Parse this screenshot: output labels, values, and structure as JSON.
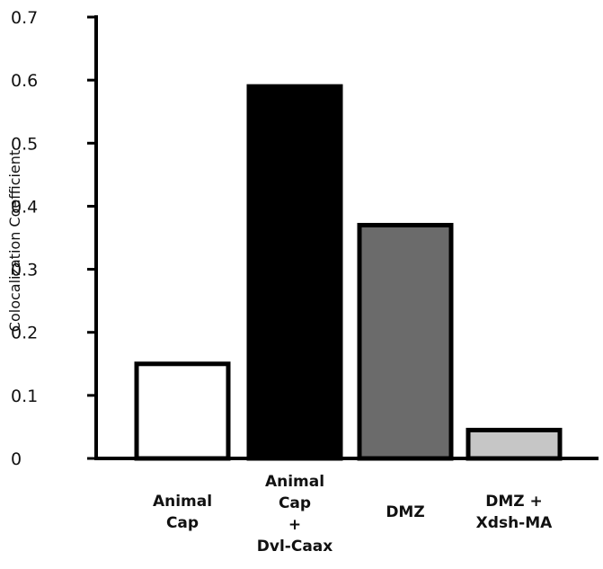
{
  "chart_data": {
    "type": "bar",
    "title": "",
    "xlabel": "",
    "ylabel": "Colocalization Coefficient",
    "ylim": [
      0,
      0.7
    ],
    "yticks": [
      {
        "value": 0,
        "label": "0"
      },
      {
        "value": 0.1,
        "label": "0.1"
      },
      {
        "value": 0.2,
        "label": "0.2"
      },
      {
        "value": 0.3,
        "label": "0.3"
      },
      {
        "value": 0.4,
        "label": "0.4"
      },
      {
        "value": 0.5,
        "label": "0.5"
      },
      {
        "value": 0.6,
        "label": "0.6"
      },
      {
        "value": 0.7,
        "label": "0.7"
      }
    ],
    "grid": false,
    "legend": "none",
    "categories": [
      [
        "Animal",
        "Cap"
      ],
      [
        "Animal",
        "Cap",
        "+",
        "Dvl-Caax"
      ],
      [
        "DMZ"
      ],
      [
        "DMZ +",
        "Xdsh-MA"
      ]
    ],
    "values": [
      0.15,
      0.59,
      0.37,
      0.045
    ],
    "colors": [
      "#ffffff",
      "#000000",
      "#6b6b6b",
      "#c6c6c6"
    ],
    "edge_color": "#000000"
  }
}
